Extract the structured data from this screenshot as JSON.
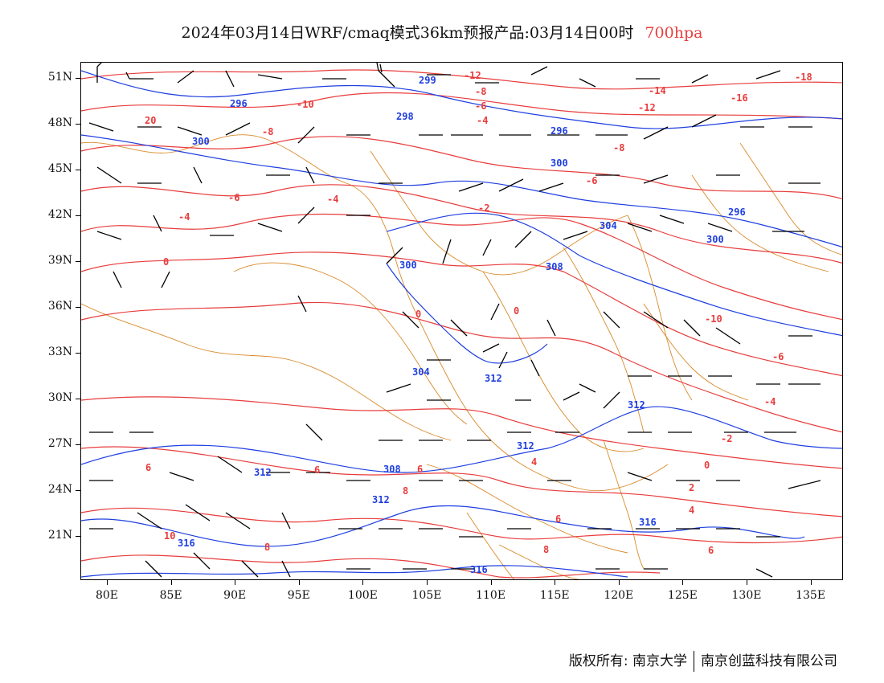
{
  "title": {
    "main": "2024年03月14日WRF/cmaq模式36km预报产品:03月14日00时",
    "level": "700hpa"
  },
  "axes": {
    "lat_labels": [
      "51N",
      "48N",
      "45N",
      "42N",
      "39N",
      "36N",
      "33N",
      "30N",
      "27N",
      "24N",
      "21N"
    ],
    "lon_labels": [
      "80E",
      "85E",
      "90E",
      "95E",
      "100E",
      "105E",
      "110E",
      "115E",
      "120E",
      "125E",
      "130E",
      "135E"
    ]
  },
  "footer": {
    "copyright": "版权所有: 南京大学",
    "company": "南京创蓝科技有限公司"
  },
  "colors": {
    "temperature": "#e83c3c",
    "geopotential": "#1f3fe0",
    "border": "#d98a2a",
    "wind": "#000000"
  },
  "map_data": {
    "height_labels": [
      "296",
      "300",
      "304",
      "308",
      "312",
      "316",
      "304",
      "312",
      "308",
      "312",
      "316",
      "312",
      "316"
    ],
    "temp_labels": [
      "-12",
      "-10",
      "-8",
      "-6",
      "-4",
      "-2",
      "0",
      "2",
      "4",
      "6",
      "8",
      "10",
      "-14",
      "-16",
      "-18",
      "20"
    ]
  }
}
